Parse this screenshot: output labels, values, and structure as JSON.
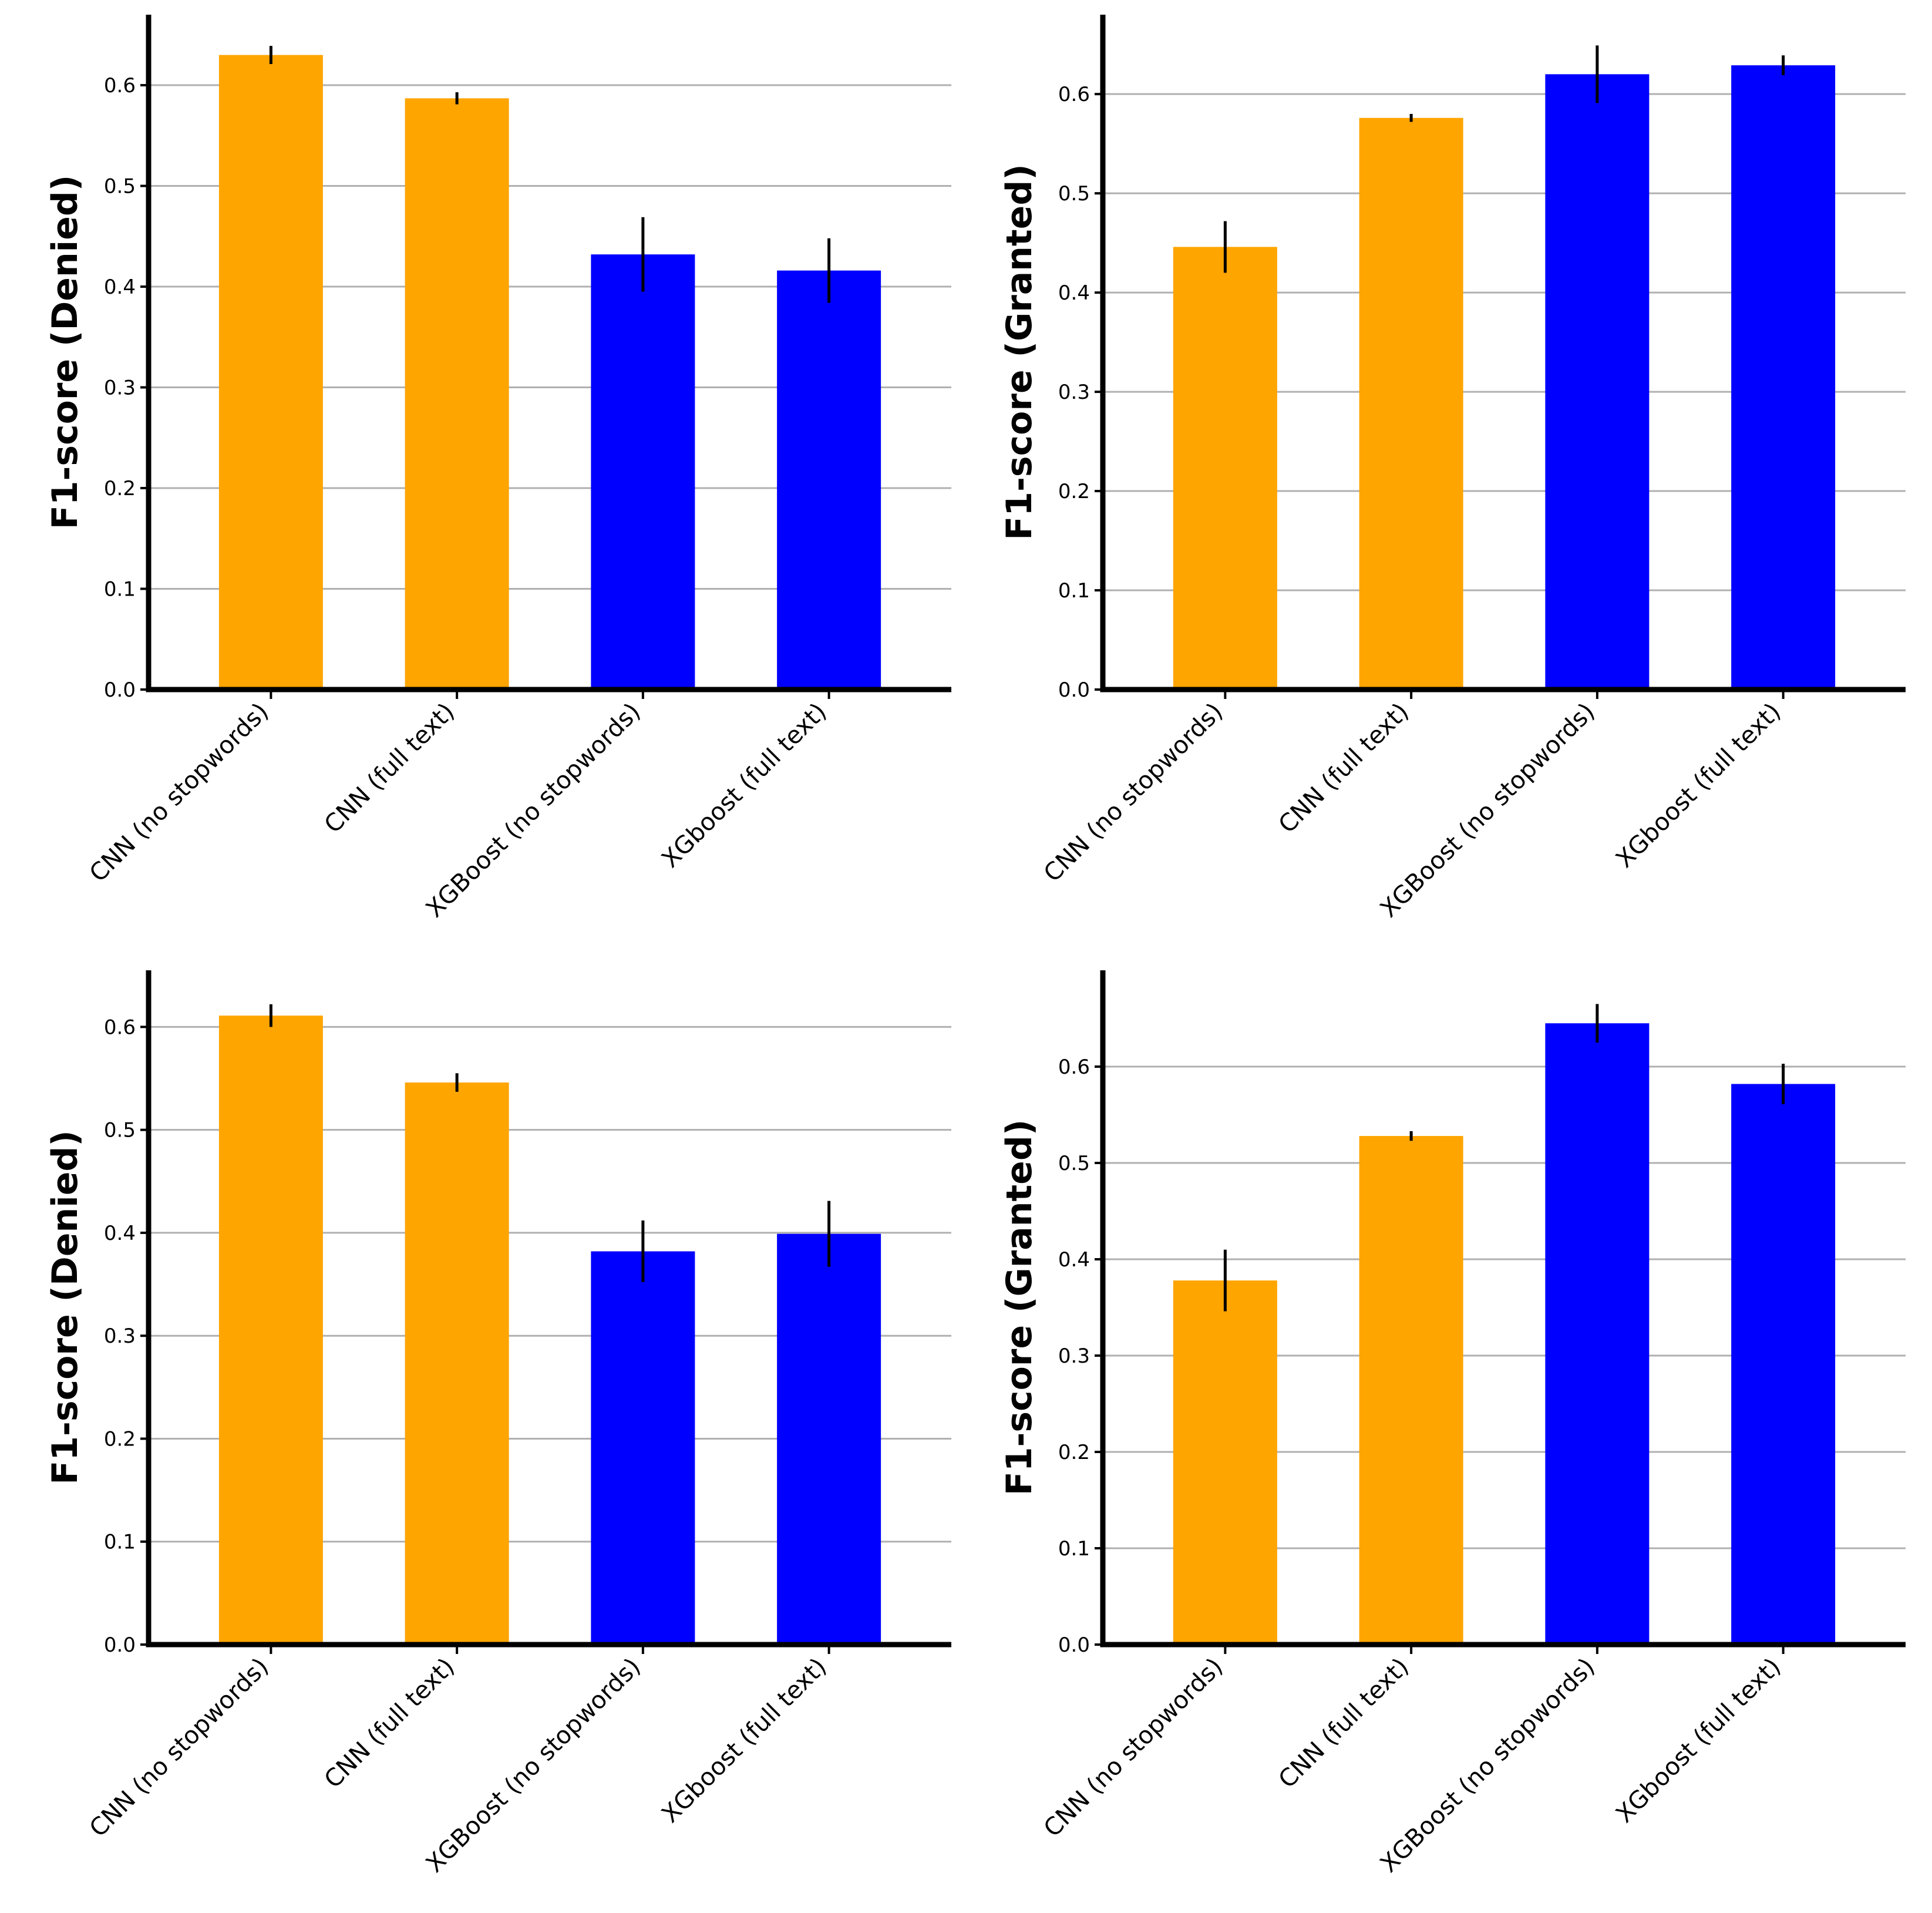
{
  "colors": {
    "cnn": "#FFA500",
    "xgboost": "#0000FF",
    "error": "#000000",
    "grid": "#b0b0b0"
  },
  "chart_data": [
    {
      "id": "top-left",
      "type": "bar",
      "ylabel": "F1-score (Denied)",
      "categories": [
        "CNN (no stopwords)",
        "CNN (full text)",
        "XGBoost (no stopwords)",
        "XGboost (full text)"
      ],
      "values": [
        0.63,
        0.587,
        0.432,
        0.416
      ],
      "errors": [
        0.009,
        0.006,
        0.037,
        0.032
      ],
      "bar_colors": [
        "#FFA500",
        "#FFA500",
        "#0000FF",
        "#0000FF"
      ],
      "ylim": [
        0,
        0.67
      ],
      "yticks": [
        0.0,
        0.1,
        0.2,
        0.3,
        0.4,
        0.5,
        0.6
      ],
      "ytick_labels": [
        "0.0",
        "0.1",
        "0.2",
        "0.3",
        "0.4",
        "0.5",
        "0.6"
      ],
      "grid": "y"
    },
    {
      "id": "top-right",
      "type": "bar",
      "ylabel": "F1-score (Granted)",
      "categories": [
        "CNN (no stopwords)",
        "CNN (full text)",
        "XGBoost (no stopwords)",
        "XGboost (full text)"
      ],
      "values": [
        0.446,
        0.576,
        0.62,
        0.629
      ],
      "errors": [
        0.026,
        0.004,
        0.029,
        0.01
      ],
      "bar_colors": [
        "#FFA500",
        "#FFA500",
        "#0000FF",
        "#0000FF"
      ],
      "ylim": [
        0,
        0.68
      ],
      "yticks": [
        0.0,
        0.1,
        0.2,
        0.3,
        0.4,
        0.5,
        0.6
      ],
      "ytick_labels": [
        "0.0",
        "0.1",
        "0.2",
        "0.3",
        "0.4",
        "0.5",
        "0.6"
      ],
      "grid": "y"
    },
    {
      "id": "bottom-left",
      "type": "bar",
      "ylabel": "F1-score (Denied)",
      "categories": [
        "CNN (no stopwords)",
        "CNN (full text)",
        "XGBoost (no stopwords)",
        "XGboost (full text)"
      ],
      "values": [
        0.611,
        0.546,
        0.382,
        0.399
      ],
      "errors": [
        0.011,
        0.009,
        0.03,
        0.032
      ],
      "bar_colors": [
        "#FFA500",
        "#FFA500",
        "#0000FF",
        "#0000FF"
      ],
      "ylim": [
        0,
        0.655
      ],
      "yticks": [
        0.0,
        0.1,
        0.2,
        0.3,
        0.4,
        0.5,
        0.6
      ],
      "ytick_labels": [
        "0.0",
        "0.1",
        "0.2",
        "0.3",
        "0.4",
        "0.5",
        "0.6"
      ],
      "grid": "y"
    },
    {
      "id": "bottom-right",
      "type": "bar",
      "ylabel": "F1-score (Granted)",
      "categories": [
        "CNN (no stopwords)",
        "CNN (full text)",
        "XGBoost (no stopwords)",
        "XGboost (full text)"
      ],
      "values": [
        0.378,
        0.528,
        0.645,
        0.582
      ],
      "errors": [
        0.032,
        0.005,
        0.02,
        0.021
      ],
      "bar_colors": [
        "#FFA500",
        "#FFA500",
        "#0000FF",
        "#0000FF"
      ],
      "ylim": [
        0,
        0.7
      ],
      "yticks": [
        0.0,
        0.1,
        0.2,
        0.3,
        0.4,
        0.5,
        0.6
      ],
      "ytick_labels": [
        "0.0",
        "0.1",
        "0.2",
        "0.3",
        "0.4",
        "0.5",
        "0.6"
      ],
      "grid": "y"
    }
  ]
}
